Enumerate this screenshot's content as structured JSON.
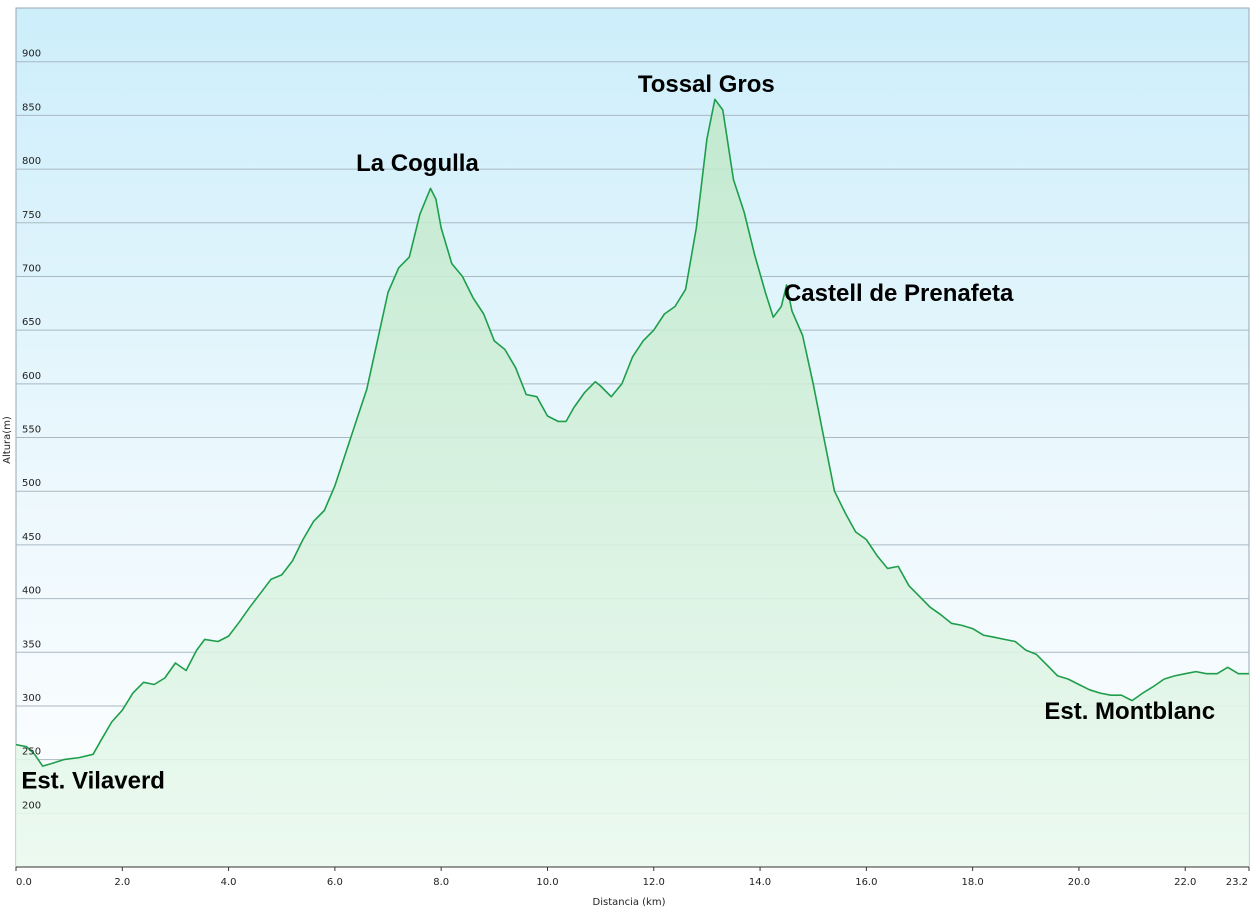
{
  "chart_data": {
    "type": "area",
    "xlabel": "Distancia  (km)",
    "ylabel": "Altura(m)",
    "xlim": [
      0,
      23.2
    ],
    "ylim": [
      150,
      950
    ],
    "x_ticks": [
      "0.0",
      "2.0",
      "4.0",
      "6.0",
      "8.0",
      "10.0",
      "12.0",
      "14.0",
      "16.0",
      "18.0",
      "20.0",
      "22.0",
      "23.2"
    ],
    "x_tick_values": [
      0,
      2,
      4,
      6,
      8,
      10,
      12,
      14,
      16,
      18,
      20,
      22,
      23.2
    ],
    "y_ticks": [
      "200",
      "250",
      "300",
      "350",
      "400",
      "450",
      "500",
      "550",
      "600",
      "650",
      "700",
      "750",
      "800",
      "850",
      "900"
    ],
    "y_tick_values": [
      200,
      250,
      300,
      350,
      400,
      450,
      500,
      550,
      600,
      650,
      700,
      750,
      800,
      850,
      900
    ],
    "grid": true,
    "annotations": [
      {
        "text": "Est. Vilaverd",
        "x": 0.1,
        "y": 223
      },
      {
        "text": "La Cogulla",
        "x": 6.4,
        "y": 798
      },
      {
        "text": "Tossal Gros",
        "x": 11.7,
        "y": 872
      },
      {
        "text": "Castell de Prenafeta",
        "x": 14.45,
        "y": 677
      },
      {
        "text": "Est. Montblanc",
        "x": 19.35,
        "y": 288
      }
    ],
    "series": [
      {
        "x": [
          0,
          0.2,
          0.35,
          0.5,
          0.65,
          0.9,
          1.2,
          1.45,
          1.6,
          1.8,
          2.0,
          2.2,
          2.4,
          2.6,
          2.8,
          3.0,
          3.2,
          3.4,
          3.55,
          3.8,
          4.0,
          4.2,
          4.4,
          4.6,
          4.8,
          5.0,
          5.2,
          5.4,
          5.6,
          5.8,
          6.0,
          6.2,
          6.4,
          6.6,
          6.8,
          7.0,
          7.2,
          7.4,
          7.6,
          7.8,
          7.9,
          8.0,
          8.2,
          8.4,
          8.6,
          8.8,
          9.0,
          9.2,
          9.4,
          9.6,
          9.8,
          10.0,
          10.2,
          10.35,
          10.5,
          10.7,
          10.9,
          11.0,
          11.2,
          11.4,
          11.6,
          11.8,
          12.0,
          12.2,
          12.4,
          12.6,
          12.8,
          13.0,
          13.15,
          13.3,
          13.5,
          13.7,
          13.9,
          14.1,
          14.25,
          14.4,
          14.5,
          14.6,
          14.8,
          15.0,
          15.2,
          15.4,
          15.6,
          15.8,
          16.0,
          16.2,
          16.4,
          16.6,
          16.8,
          17.0,
          17.2,
          17.4,
          17.6,
          17.8,
          18.0,
          18.2,
          18.4,
          18.6,
          18.8,
          19.0,
          19.2,
          19.4,
          19.6,
          19.8,
          20.0,
          20.2,
          20.4,
          20.6,
          20.8,
          21.0,
          21.2,
          21.4,
          21.6,
          21.8,
          22.0,
          22.2,
          22.4,
          22.6,
          22.8,
          23.0,
          23.2
        ],
        "values": [
          264,
          262,
          255,
          244,
          246,
          250,
          252,
          255,
          268,
          285,
          296,
          312,
          322,
          320,
          326,
          340,
          333,
          352,
          362,
          360,
          365,
          378,
          392,
          405,
          418,
          422,
          435,
          455,
          472,
          482,
          505,
          535,
          565,
          595,
          640,
          685,
          708,
          718,
          758,
          782,
          772,
          745,
          712,
          700,
          680,
          665,
          640,
          632,
          615,
          590,
          588,
          570,
          565,
          565,
          578,
          592,
          602,
          598,
          588,
          600,
          625,
          640,
          650,
          665,
          672,
          688,
          745,
          828,
          865,
          855,
          790,
          760,
          720,
          685,
          662,
          672,
          692,
          668,
          645,
          600,
          550,
          500,
          480,
          462,
          455,
          440,
          428,
          430,
          412,
          402,
          392,
          385,
          377,
          375,
          372,
          366,
          364,
          362,
          360,
          352,
          348,
          338,
          328,
          325,
          320,
          315,
          312,
          310,
          310,
          305,
          312,
          318,
          325,
          328,
          330,
          332,
          330,
          330,
          336,
          330,
          330
        ]
      }
    ]
  }
}
